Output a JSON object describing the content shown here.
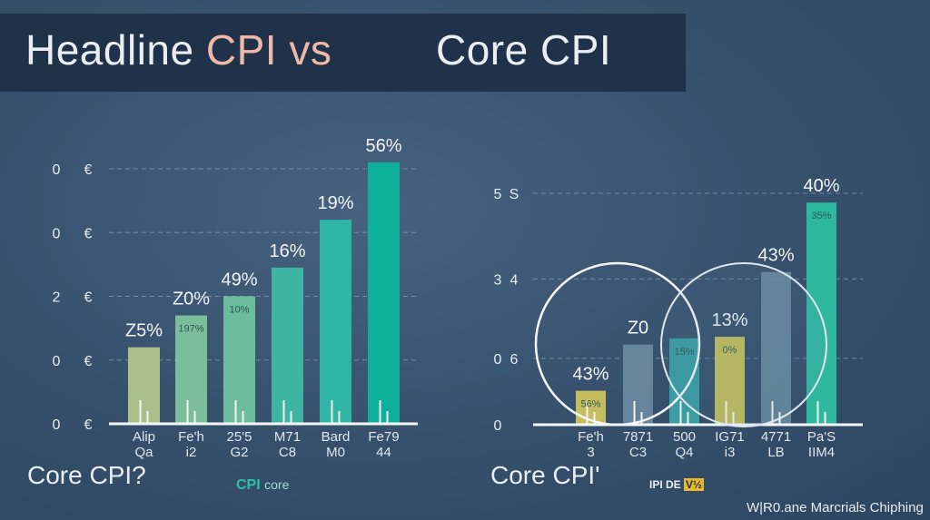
{
  "title": {
    "part1": "Headline ",
    "part2": "CPI vs",
    "part3": "Core CPI",
    "accent": "#f0b8a8"
  },
  "chart_data": [
    {
      "type": "bar",
      "title": "",
      "xlabel": "Core CPI?",
      "ylabel": "",
      "ylim": [
        0,
        4
      ],
      "grid": true,
      "yticks": [
        0,
        1,
        2,
        3,
        4
      ],
      "ytick_labels": [
        [
          "0",
          "€"
        ],
        [
          "0",
          "€"
        ],
        [
          "2",
          "€"
        ],
        [
          "0",
          "€"
        ],
        [
          "0",
          "€"
        ]
      ],
      "categories": [
        [
          "Alip",
          "Qa"
        ],
        [
          "Fe'h",
          "i2"
        ],
        [
          "25'5",
          "G2"
        ],
        [
          "M71",
          "C8"
        ],
        [
          "Bard",
          "M0"
        ],
        [
          "Fe79",
          "44"
        ]
      ],
      "values": [
        1.2,
        1.7,
        2.0,
        2.45,
        3.2,
        4.1
      ],
      "labels": [
        "Z5%",
        "Z0%",
        "49%",
        "16%",
        "19%",
        "56%"
      ],
      "inner_labels": [
        "",
        "197%",
        "10%",
        "",
        "",
        ""
      ],
      "colors": [
        "#a9c08b",
        "#7cbd9b",
        "#6cbd9d",
        "#3db5a2",
        "#2fb5a4",
        "#0fb09b"
      ],
      "legend": {
        "strong": "CPI",
        "weak": "core"
      }
    },
    {
      "type": "bar",
      "title": "",
      "xlabel": "Core CPI'",
      "ylabel": "",
      "ylim": [
        0,
        3
      ],
      "grid": true,
      "yticks": [
        0,
        0.86,
        1.89,
        3.0
      ],
      "ytick_labels": [
        [
          "0",
          ""
        ],
        [
          "0",
          "6"
        ],
        [
          "3",
          "4"
        ],
        [
          "5",
          "S"
        ]
      ],
      "categories": [
        [
          "Fe'h",
          "3"
        ],
        [
          "7871",
          "C3"
        ],
        [
          "500",
          "Q4"
        ],
        [
          "IG71",
          "i3"
        ],
        [
          "4771",
          "LB"
        ],
        [
          "Pa'S",
          "IIM4"
        ]
      ],
      "values": [
        0.44,
        1.04,
        1.12,
        1.14,
        1.98,
        2.88
      ],
      "labels": [
        "43%",
        "Z0",
        "",
        "13%",
        "43%",
        "40%"
      ],
      "inner_labels": [
        "56%",
        "",
        "15%",
        "0%",
        "",
        "35%"
      ],
      "colors": [
        "#c6bd5e",
        "#6d8ea5",
        "#3a9ea4",
        "#c2bd5c",
        "#6d8ea5",
        "#2fb8a0"
      ],
      "legend": {
        "strong": "IPI DE",
        "badge": "V½",
        "badge_color": "#e8b92e"
      }
    }
  ],
  "footer": "W|R0.ane Marcrials Chiphing"
}
